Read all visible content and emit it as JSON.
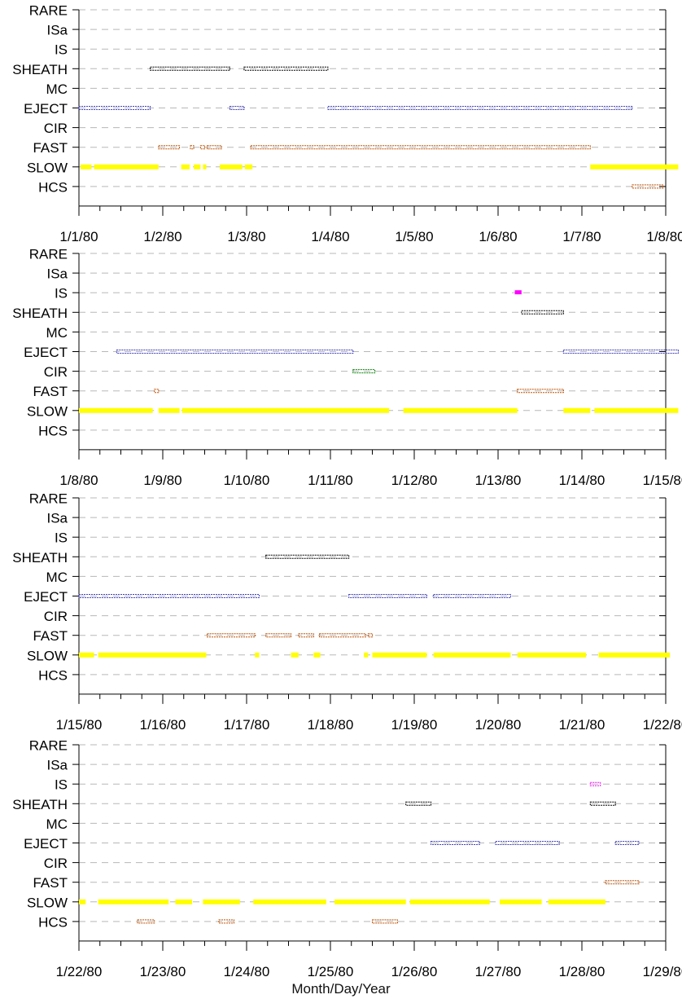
{
  "chart_data": {
    "type": "timeline",
    "xlabel": "Month/Day/Year",
    "colors": {
      "SHEATH": "#000000",
      "EJECT": "#4040c0",
      "FAST": "#c05000",
      "SLOW": "#ffff00",
      "HCS": "#c05000",
      "CIR": "#008000",
      "IS": "#ff00ff"
    },
    "categories": [
      "RARE",
      "ISa",
      "IS",
      "SHEATH",
      "MC",
      "EJECT",
      "CIR",
      "FAST",
      "SLOW",
      "HCS"
    ],
    "panels": [
      {
        "tick_labels": [
          "1/1/80",
          "1/2/80",
          "1/3/80",
          "1/4/80",
          "1/5/80",
          "1/6/80",
          "1/7/80",
          "1/8/80"
        ],
        "intervals": {
          "SHEATH": [
            [
              0.85,
              1.8
            ],
            [
              1.97,
              2.97
            ]
          ],
          "EJECT": [
            [
              0.0,
              0.85
            ],
            [
              1.8,
              1.97
            ],
            [
              2.97,
              6.6
            ]
          ],
          "FAST": [
            [
              0.95,
              1.2
            ],
            [
              1.33,
              1.37
            ],
            [
              1.45,
              1.5
            ],
            [
              1.53,
              1.7
            ],
            [
              2.05,
              6.1
            ]
          ],
          "SLOW": [
            [
              0.02,
              0.15
            ],
            [
              0.18,
              0.95
            ],
            [
              1.22,
              1.32
            ],
            [
              1.37,
              1.45
            ],
            [
              1.48,
              1.52
            ],
            [
              1.68,
              1.95
            ],
            [
              1.98,
              2.07
            ],
            [
              6.1,
              7.15
            ]
          ],
          "HCS": [
            [
              6.6,
              6.97
            ]
          ]
        }
      },
      {
        "tick_labels": [
          "1/8/80",
          "1/9/80",
          "1/10/80",
          "1/11/80",
          "1/12/80",
          "1/13/80",
          "1/14/80",
          "1/15/80"
        ],
        "intervals": {
          "IS": [
            [
              5.2,
              5.28
            ]
          ],
          "SHEATH": [
            [
              5.28,
              5.78
            ]
          ],
          "EJECT": [
            [
              0.45,
              3.27
            ],
            [
              5.78,
              7.15
            ]
          ],
          "CIR": [
            [
              3.27,
              3.53
            ]
          ],
          "FAST": [
            [
              0.9,
              0.95
            ],
            [
              5.23,
              5.78
            ]
          ],
          "SLOW": [
            [
              0.0,
              0.88
            ],
            [
              0.95,
              1.2
            ],
            [
              1.23,
              3.7
            ],
            [
              3.87,
              5.23
            ],
            [
              5.78,
              6.1
            ],
            [
              6.15,
              7.15
            ]
          ]
        }
      },
      {
        "tick_labels": [
          "1/15/80",
          "1/16/80",
          "1/17/80",
          "1/18/80",
          "1/19/80",
          "1/20/80",
          "1/21/80",
          "1/22/80"
        ],
        "intervals": {
          "SHEATH": [
            [
              2.23,
              3.22
            ]
          ],
          "EJECT": [
            [
              0.0,
              2.15
            ],
            [
              3.22,
              4.15
            ],
            [
              4.23,
              5.15
            ]
          ],
          "FAST": [
            [
              1.53,
              2.1
            ],
            [
              2.23,
              2.53
            ],
            [
              2.62,
              2.8
            ],
            [
              2.87,
              3.42
            ],
            [
              3.45,
              3.5
            ]
          ],
          "SLOW": [
            [
              0.0,
              0.18
            ],
            [
              0.23,
              1.52
            ],
            [
              2.1,
              2.15
            ],
            [
              2.53,
              2.62
            ],
            [
              2.8,
              2.88
            ],
            [
              3.4,
              3.45
            ],
            [
              3.5,
              4.15
            ],
            [
              4.23,
              5.15
            ],
            [
              5.23,
              6.05
            ],
            [
              6.2,
              7.05
            ]
          ]
        }
      },
      {
        "tick_labels": [
          "1/22/80",
          "1/23/80",
          "1/24/80",
          "1/25/80",
          "1/26/80",
          "1/27/80",
          "1/28/80",
          "1/29/80"
        ],
        "intervals": {
          "IS": [
            [
              6.1,
              6.22
            ]
          ],
          "SHEATH": [
            [
              3.9,
              4.2
            ],
            [
              6.1,
              6.4
            ]
          ],
          "EJECT": [
            [
              4.2,
              4.78
            ],
            [
              4.97,
              5.73
            ],
            [
              6.4,
              6.68
            ]
          ],
          "FAST": [
            [
              6.28,
              6.68
            ]
          ],
          "SLOW": [
            [
              0.0,
              0.08
            ],
            [
              0.23,
              1.07
            ],
            [
              1.15,
              1.35
            ],
            [
              1.48,
              1.92
            ],
            [
              2.08,
              2.95
            ],
            [
              3.05,
              3.9
            ],
            [
              3.95,
              4.9
            ],
            [
              5.02,
              5.52
            ],
            [
              5.6,
              6.28
            ]
          ],
          "HCS": [
            [
              0.7,
              0.9
            ],
            [
              1.67,
              1.85
            ],
            [
              3.5,
              3.8
            ]
          ]
        }
      }
    ]
  }
}
